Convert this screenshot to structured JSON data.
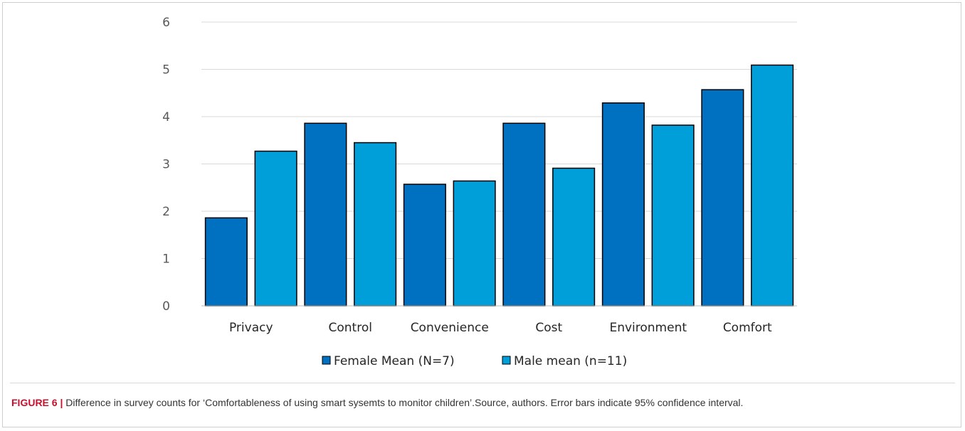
{
  "caption": {
    "label": "FIGURE 6 |",
    "text": " Difference in survey counts for ‘Comfortableness of using smart sysemts to monitor children’.Source, authors. Error bars indicate 95% confidence interval."
  },
  "chart_data": {
    "type": "bar",
    "title": "",
    "xlabel": "",
    "ylabel": "",
    "ylim": [
      0,
      6
    ],
    "yticks": [
      0,
      1,
      2,
      3,
      4,
      5,
      6
    ],
    "grid": true,
    "legend_position": "bottom",
    "categories": [
      "Privacy",
      "Control",
      "Convenience",
      "Cost",
      "Environment",
      "Comfort"
    ],
    "series": [
      {
        "name": "Female Mean (N=7)",
        "color": "#0070C0",
        "values": [
          1.86,
          3.86,
          2.57,
          3.86,
          4.29,
          4.57
        ]
      },
      {
        "name": "Male mean (n=11)",
        "color": "#009FDA",
        "values": [
          3.27,
          3.45,
          2.64,
          2.91,
          3.82,
          5.09
        ]
      }
    ]
  }
}
